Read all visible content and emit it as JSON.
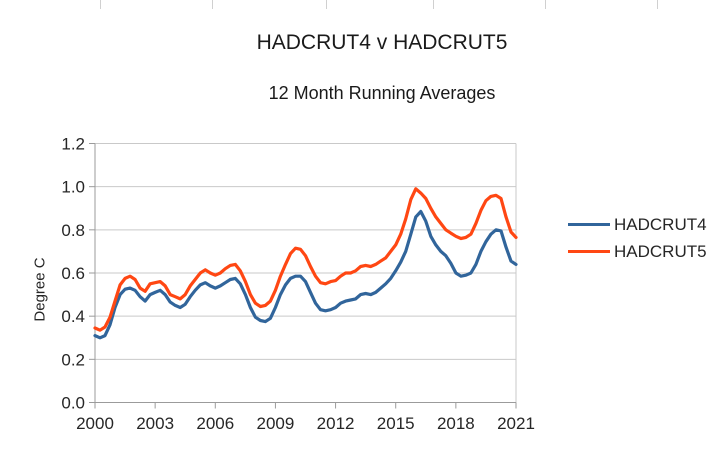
{
  "chart_data": {
    "type": "line",
    "title": "HADCRUT4 v HADCRUT5",
    "subtitle": "12 Month Running Averages",
    "xlabel": "",
    "ylabel": "Degree C",
    "xlim": [
      2000,
      2021
    ],
    "ylim": [
      0.0,
      1.2
    ],
    "x_ticks": [
      2000,
      2003,
      2006,
      2009,
      2012,
      2015,
      2018,
      2021
    ],
    "x_tick_labels": [
      "2000",
      "2003",
      "2006",
      "2009",
      "2012",
      "2015",
      "2018",
      "2021"
    ],
    "y_ticks": [
      0.0,
      0.2,
      0.4,
      0.6,
      0.8,
      1.0,
      1.2
    ],
    "y_tick_labels": [
      "0.0",
      "0.2",
      "0.4",
      "0.6",
      "0.8",
      "1.0",
      "1.2"
    ],
    "grid": true,
    "legend_position": "right",
    "x": [
      2000,
      2000.25,
      2000.5,
      2000.75,
      2001,
      2001.25,
      2001.5,
      2001.75,
      2002,
      2002.25,
      2002.5,
      2002.75,
      2003,
      2003.25,
      2003.5,
      2003.75,
      2004,
      2004.25,
      2004.5,
      2004.75,
      2005,
      2005.25,
      2005.5,
      2005.75,
      2006,
      2006.25,
      2006.5,
      2006.75,
      2007,
      2007.25,
      2007.5,
      2007.75,
      2008,
      2008.25,
      2008.5,
      2008.75,
      2009,
      2009.25,
      2009.5,
      2009.75,
      2010,
      2010.25,
      2010.5,
      2010.75,
      2011,
      2011.25,
      2011.5,
      2011.75,
      2012,
      2012.25,
      2012.5,
      2012.75,
      2013,
      2013.25,
      2013.5,
      2013.75,
      2014,
      2014.25,
      2014.5,
      2014.75,
      2015,
      2015.25,
      2015.5,
      2015.75,
      2016,
      2016.25,
      2016.5,
      2016.75,
      2017,
      2017.25,
      2017.5,
      2017.75,
      2018,
      2018.25,
      2018.5,
      2018.75,
      2019,
      2019.25,
      2019.5,
      2019.75,
      2020,
      2020.25,
      2020.5,
      2020.75,
      2021
    ],
    "series": [
      {
        "name": "HADCRUT4",
        "color": "#31659B",
        "values": [
          0.31,
          0.3,
          0.31,
          0.36,
          0.44,
          0.5,
          0.525,
          0.53,
          0.52,
          0.49,
          0.47,
          0.5,
          0.51,
          0.52,
          0.5,
          0.465,
          0.45,
          0.44,
          0.455,
          0.49,
          0.52,
          0.545,
          0.555,
          0.54,
          0.53,
          0.54,
          0.555,
          0.57,
          0.575,
          0.55,
          0.5,
          0.44,
          0.395,
          0.38,
          0.375,
          0.39,
          0.44,
          0.5,
          0.545,
          0.575,
          0.585,
          0.585,
          0.56,
          0.51,
          0.46,
          0.43,
          0.425,
          0.43,
          0.44,
          0.46,
          0.47,
          0.475,
          0.48,
          0.5,
          0.505,
          0.5,
          0.51,
          0.53,
          0.55,
          0.575,
          0.61,
          0.65,
          0.7,
          0.78,
          0.86,
          0.885,
          0.84,
          0.77,
          0.73,
          0.7,
          0.68,
          0.645,
          0.6,
          0.585,
          0.59,
          0.6,
          0.64,
          0.7,
          0.745,
          0.78,
          0.8,
          0.795,
          0.72,
          0.655,
          0.64
        ]
      },
      {
        "name": "HADCRUT5",
        "color": "#FF4713",
        "values": [
          0.345,
          0.335,
          0.35,
          0.395,
          0.47,
          0.545,
          0.575,
          0.585,
          0.57,
          0.53,
          0.515,
          0.55,
          0.555,
          0.56,
          0.54,
          0.5,
          0.49,
          0.48,
          0.5,
          0.54,
          0.57,
          0.6,
          0.615,
          0.6,
          0.59,
          0.6,
          0.62,
          0.635,
          0.64,
          0.61,
          0.56,
          0.5,
          0.46,
          0.445,
          0.45,
          0.47,
          0.52,
          0.585,
          0.64,
          0.69,
          0.715,
          0.71,
          0.68,
          0.63,
          0.585,
          0.555,
          0.55,
          0.56,
          0.565,
          0.585,
          0.6,
          0.6,
          0.61,
          0.63,
          0.635,
          0.63,
          0.64,
          0.655,
          0.67,
          0.7,
          0.73,
          0.78,
          0.85,
          0.94,
          0.99,
          0.97,
          0.945,
          0.9,
          0.86,
          0.83,
          0.8,
          0.785,
          0.77,
          0.76,
          0.765,
          0.78,
          0.83,
          0.89,
          0.935,
          0.955,
          0.96,
          0.945,
          0.86,
          0.79,
          0.765
        ]
      }
    ]
  },
  "colors": {
    "grid": "#c9c9c9",
    "axis": "#9b9b9b",
    "tick_text": "#262626",
    "title_text": "#1a1a1a",
    "sheet_border": "#d0d0d0",
    "background": "#ffffff"
  }
}
